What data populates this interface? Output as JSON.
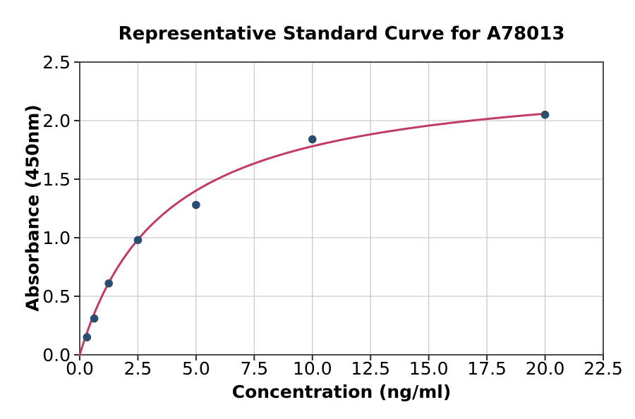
{
  "chart_data": {
    "type": "scatter",
    "title": "Representative Standard Curve for A78013",
    "xlabel": "Concentration (ng/ml)",
    "ylabel": "Absorbance (450nm)",
    "xlim": [
      0,
      22.5
    ],
    "ylim": [
      0,
      2.5
    ],
    "x_tick_labels": [
      "0.0",
      "2.5",
      "5.0",
      "7.5",
      "10.0",
      "12.5",
      "15.0",
      "17.5",
      "20.0",
      "22.5"
    ],
    "y_tick_labels": [
      "0.0",
      "0.5",
      "1.0",
      "1.5",
      "2.0",
      "2.5"
    ],
    "grid": true,
    "legend": "none",
    "points": [
      {
        "x": 0.3125,
        "y": 0.15
      },
      {
        "x": 0.625,
        "y": 0.31
      },
      {
        "x": 1.25,
        "y": 0.61
      },
      {
        "x": 2.5,
        "y": 0.98
      },
      {
        "x": 5,
        "y": 1.28
      },
      {
        "x": 10,
        "y": 1.84
      },
      {
        "x": 20,
        "y": 2.05
      }
    ],
    "fit_curve": {
      "model": "michaelis_menten",
      "vmax": 2.44,
      "km": 3.7,
      "x_range": [
        0,
        20
      ]
    },
    "colors": {
      "marker": "#2b4d70",
      "curve": "#c23b64",
      "grid": "#c9c9c9",
      "spine": "#4c4c4c",
      "tick": "#2b2b2b",
      "text": "#000000",
      "background": "#ffffff"
    }
  }
}
